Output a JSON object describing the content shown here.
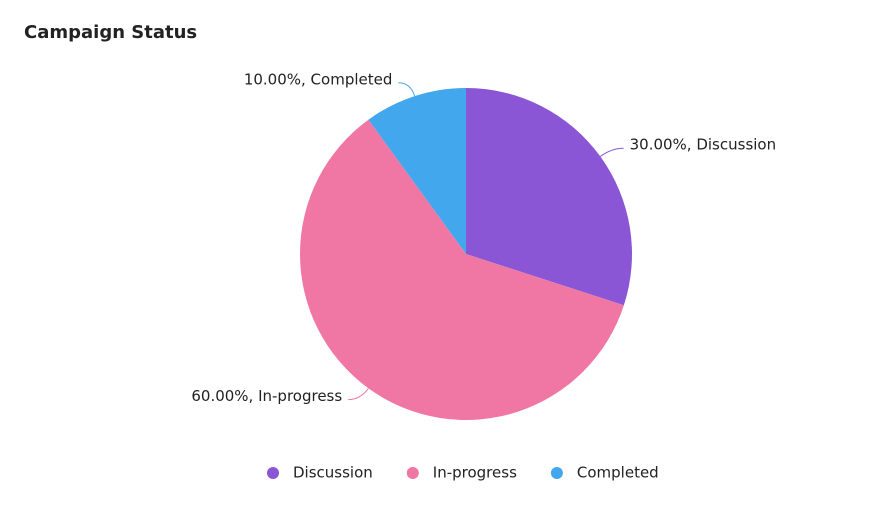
{
  "chart_data": {
    "type": "pie",
    "title": "Campaign Status",
    "categories": [
      "Discussion",
      "In-progress",
      "Completed"
    ],
    "values": [
      30,
      60,
      10
    ],
    "value_labels": [
      "30.00%, Discussion",
      "60.00%, In-progress",
      "10.00%, Completed"
    ],
    "colors": [
      "#8a56d6",
      "#f077a3",
      "#42a7ec"
    ],
    "legend": "bottom"
  }
}
